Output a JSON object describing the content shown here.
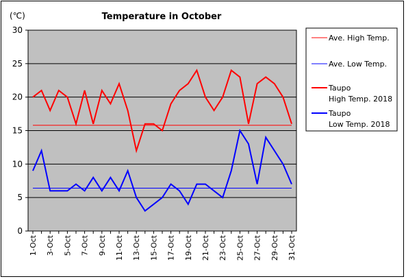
{
  "chart_data": {
    "type": "line",
    "title": "Temperature in October",
    "unit_label": "(℃)",
    "ylim": [
      0,
      30
    ],
    "y_ticks": [
      "0",
      "5",
      "10",
      "15",
      "20",
      "25",
      "30"
    ],
    "x_tick_labels": [
      "1-Oct",
      "3-Oct",
      "5-Oct",
      "7-Oct",
      "9-Oct",
      "11-Oct",
      "13-Oct",
      "15-Oct",
      "17-Oct",
      "19-Oct",
      "21-Oct",
      "23-Oct",
      "25-Oct",
      "27-Oct",
      "29-Oct",
      "31-Oct"
    ],
    "x_days": [
      1,
      2,
      3,
      4,
      5,
      6,
      7,
      8,
      9,
      10,
      11,
      12,
      13,
      14,
      15,
      16,
      17,
      18,
      19,
      20,
      21,
      22,
      23,
      24,
      25,
      26,
      27,
      28,
      29,
      30,
      31
    ],
    "grid": true,
    "plot_background": "#c0c0c0",
    "legend_position": "right",
    "series": [
      {
        "name": "Ave. High Temp.",
        "legend_lines": [
          "Ave. High Temp."
        ],
        "color": "#ff0000",
        "width": 1,
        "values": [
          15.8,
          15.8,
          15.8,
          15.8,
          15.8,
          15.8,
          15.8,
          15.8,
          15.8,
          15.8,
          15.8,
          15.8,
          15.8,
          15.8,
          15.8,
          15.8,
          15.8,
          15.8,
          15.8,
          15.8,
          15.8,
          15.8,
          15.8,
          15.8,
          15.8,
          15.8,
          15.8,
          15.8,
          15.8,
          15.8,
          15.8
        ]
      },
      {
        "name": "Ave. Low Temp.",
        "legend_lines": [
          "Ave. Low Temp."
        ],
        "color": "#0000ff",
        "width": 1,
        "values": [
          6.4,
          6.4,
          6.4,
          6.4,
          6.4,
          6.4,
          6.4,
          6.4,
          6.4,
          6.4,
          6.4,
          6.4,
          6.4,
          6.4,
          6.4,
          6.4,
          6.4,
          6.4,
          6.4,
          6.4,
          6.4,
          6.4,
          6.4,
          6.4,
          6.4,
          6.4,
          6.4,
          6.4,
          6.4,
          6.4,
          6.4
        ]
      },
      {
        "name": "Taupo High Temp. 2018",
        "legend_lines": [
          "Taupo",
          "High Temp. 2018"
        ],
        "color": "#ff0000",
        "width": 2,
        "values": [
          20,
          21,
          18,
          21,
          20,
          16,
          21,
          16,
          21,
          19,
          22,
          18,
          12,
          16,
          16,
          15,
          19,
          21,
          22,
          24,
          20,
          18,
          20,
          24,
          23,
          16,
          22,
          23,
          22,
          20,
          16
        ]
      },
      {
        "name": "Taupo Low Temp. 2018",
        "legend_lines": [
          "Taupo",
          "Low Temp. 2018"
        ],
        "color": "#0000ff",
        "width": 2,
        "values": [
          9,
          12,
          6,
          6,
          6,
          7,
          6,
          8,
          6,
          8,
          6,
          9,
          5,
          3,
          4,
          5,
          7,
          6,
          4,
          7,
          7,
          6,
          5,
          9,
          15,
          13,
          7,
          14,
          12,
          10,
          7
        ]
      }
    ]
  }
}
